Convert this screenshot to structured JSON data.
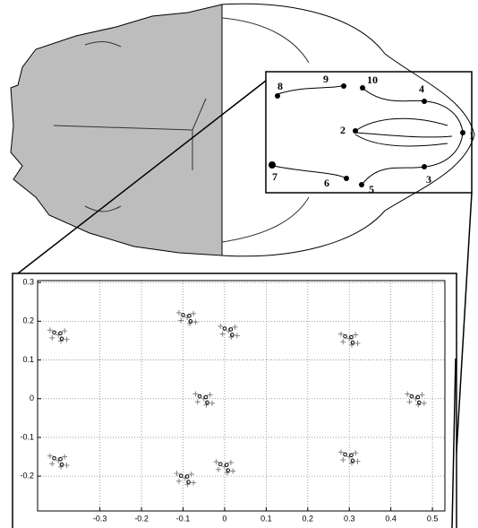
{
  "landmarks": [
    {
      "label": "1"
    },
    {
      "label": "2"
    },
    {
      "label": "3"
    },
    {
      "label": "4"
    },
    {
      "label": "5"
    },
    {
      "label": "6"
    },
    {
      "label": "7"
    },
    {
      "label": "8"
    },
    {
      "label": "9"
    },
    {
      "label": "10"
    }
  ],
  "chart_data": {
    "type": "scatter",
    "xlim": [
      -0.45,
      0.53
    ],
    "ylim": [
      -0.29,
      0.305
    ],
    "xticks": [
      -0.3,
      -0.2,
      -0.1,
      0,
      0.1,
      0.2,
      0.3,
      0.4,
      0.5
    ],
    "yticks": [
      -0.2,
      -0.1,
      0,
      0.1,
      0.2,
      0.3
    ],
    "grid": true,
    "series": [
      {
        "color": "#808080",
        "marker": "plus",
        "x": [
          0.46,
          0.475,
          0.445,
          0.48,
          0.44,
          0.466,
          -0.05,
          -0.035,
          -0.065,
          -0.03,
          -0.07,
          -0.044,
          0.3,
          0.315,
          0.285,
          0.32,
          0.28,
          0.306,
          0.3,
          0.315,
          0.285,
          0.32,
          0.28,
          0.306,
          0,
          0.015,
          -0.015,
          0.02,
          -0.02,
          0.006,
          -0.095,
          -0.08,
          -0.11,
          -0.075,
          -0.115,
          -0.089,
          -0.4,
          -0.385,
          -0.415,
          -0.38,
          -0.42,
          -0.394,
          -0.4,
          -0.385,
          -0.415,
          -0.38,
          -0.42,
          -0.394,
          -0.09,
          -0.075,
          -0.105,
          -0.07,
          -0.11,
          -0.084,
          0.01,
          0.025,
          -0.005,
          0.03,
          -0.01,
          0.016
        ],
        "values": [
          0,
          0.01,
          -0.008,
          -0.012,
          0.012,
          -0.016,
          0,
          0.01,
          -0.008,
          -0.012,
          0.012,
          -0.016,
          -0.15,
          -0.14,
          -0.158,
          -0.162,
          -0.138,
          -0.166,
          0.155,
          0.165,
          0.147,
          0.143,
          0.167,
          0.139,
          -0.175,
          -0.165,
          -0.183,
          -0.187,
          -0.163,
          -0.191,
          -0.205,
          -0.195,
          -0.213,
          -0.217,
          -0.193,
          -0.221,
          -0.16,
          -0.15,
          -0.168,
          -0.172,
          -0.148,
          -0.176,
          0.165,
          0.175,
          0.157,
          0.153,
          0.177,
          0.149,
          0.21,
          0.22,
          0.202,
          0.198,
          0.222,
          0.194,
          0.175,
          0.185,
          0.167,
          0.163,
          0.187,
          0.159
        ]
      },
      {
        "color": "#000000",
        "marker": "dot",
        "x": [
          0.465,
          0.45,
          0.468,
          -0.045,
          -0.06,
          -0.042,
          0.305,
          0.29,
          0.308,
          0.305,
          0.29,
          0.308,
          0.005,
          -0.01,
          0.008,
          -0.09,
          -0.105,
          -0.087,
          -0.395,
          -0.41,
          -0.392,
          -0.395,
          -0.41,
          -0.392,
          -0.085,
          -0.1,
          -0.082,
          0.015,
          0,
          0.018
        ],
        "values": [
          0.004,
          0.006,
          -0.01,
          0.004,
          0.006,
          -0.01,
          -0.146,
          -0.144,
          -0.16,
          0.159,
          0.161,
          0.145,
          -0.171,
          -0.169,
          -0.185,
          -0.201,
          -0.199,
          -0.215,
          -0.156,
          -0.154,
          -0.17,
          0.169,
          0.171,
          0.155,
          0.214,
          0.216,
          0.2,
          0.179,
          0.181,
          0.165
        ]
      }
    ]
  }
}
